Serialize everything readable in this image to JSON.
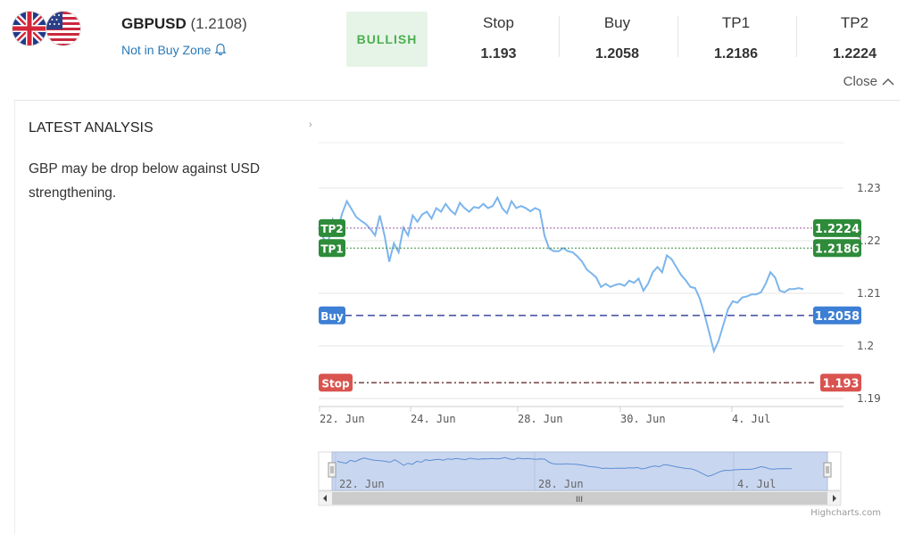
{
  "header": {
    "pair": "GBPUSD",
    "price": "(1.2108)",
    "zone_status": "Not in Buy Zone",
    "sentiment": "BULLISH",
    "levels": [
      {
        "label": "Stop",
        "value": "1.193"
      },
      {
        "label": "Buy",
        "value": "1.2058"
      },
      {
        "label": "TP1",
        "value": "1.2186"
      },
      {
        "label": "TP2",
        "value": "1.2224"
      }
    ],
    "close_label": "Close"
  },
  "analysis": {
    "heading": "LATEST ANALYSIS",
    "text": "GBP may be drop below against USD strengthening.",
    "expander": "›"
  },
  "chart_data": {
    "type": "line",
    "y_axis_side": "right",
    "y_ticks": [
      "1.23",
      "1.22",
      "1.21",
      "1.2",
      "1.19"
    ],
    "y_tick_values": [
      1.23,
      1.22,
      1.21,
      1.2,
      1.19
    ],
    "ylim": [
      1.19,
      1.23
    ],
    "x_ticks": [
      "22. Jun",
      "24. Jun",
      "28. Jun",
      "30. Jun",
      "4. Jul"
    ],
    "navigator_ticks": [
      "22. Jun",
      "28. Jun",
      "4. Jul"
    ],
    "grid": true,
    "series_color": "#7cb5ec",
    "series": [
      {
        "values": [
          1.2225,
          1.2205,
          1.2195,
          1.224,
          1.222,
          1.2252,
          1.2275,
          1.226,
          1.2245,
          1.2238,
          1.2232,
          1.2222,
          1.221,
          1.2248,
          1.221,
          1.216,
          1.2195,
          1.2178,
          1.2225,
          1.221,
          1.2248,
          1.2236,
          1.225,
          1.2255,
          1.2242,
          1.2262,
          1.2255,
          1.227,
          1.2258,
          1.225,
          1.2272,
          1.2262,
          1.2255,
          1.2264,
          1.2262,
          1.227,
          1.2262,
          1.2266,
          1.2282,
          1.2262,
          1.2252,
          1.2275,
          1.2262,
          1.2266,
          1.2262,
          1.2256,
          1.2262,
          1.2258,
          1.221,
          1.2185,
          1.218,
          1.218,
          1.2186,
          1.218,
          1.2178,
          1.217,
          1.216,
          1.2145,
          1.2138,
          1.213,
          1.2112,
          1.2118,
          1.2112,
          1.2116,
          1.2118,
          1.2114,
          1.2124,
          1.212,
          1.2128,
          1.2105,
          1.2118,
          1.214,
          1.215,
          1.214,
          1.2172,
          1.2165,
          1.215,
          1.2135,
          1.2125,
          1.2112,
          1.211,
          1.209,
          1.206,
          1.2025,
          1.199,
          1.201,
          1.204,
          1.207,
          1.2085,
          1.2082,
          1.2092,
          1.2094,
          1.2098,
          1.2098,
          1.2102,
          1.2118,
          1.214,
          1.213,
          1.2105,
          1.2102,
          1.2108,
          1.2108,
          1.211,
          1.2108
        ]
      }
    ],
    "plot_lines": [
      {
        "label": "TP2",
        "value": 1.2224,
        "value_label": "1.2224",
        "color": "#2e8b3a",
        "line_color": "#9a5ba5",
        "style": "dotted"
      },
      {
        "label": "TP1",
        "value": 1.2186,
        "value_label": "1.2186",
        "color": "#2e8b3a",
        "line_color": "#3a8c3a",
        "style": "dotted"
      },
      {
        "label": "Buy",
        "value": 1.2058,
        "value_label": "1.2058",
        "color": "#3d7fd4",
        "line_color": "#4b58a8",
        "style": "dashed"
      },
      {
        "label": "Stop",
        "value": 1.193,
        "value_label": "1.193",
        "color": "#d9534f",
        "line_color": "#7a4b4b",
        "style": "dashdot"
      }
    ],
    "credits": "Highcharts.com",
    "scrollbar_grip": "III"
  }
}
